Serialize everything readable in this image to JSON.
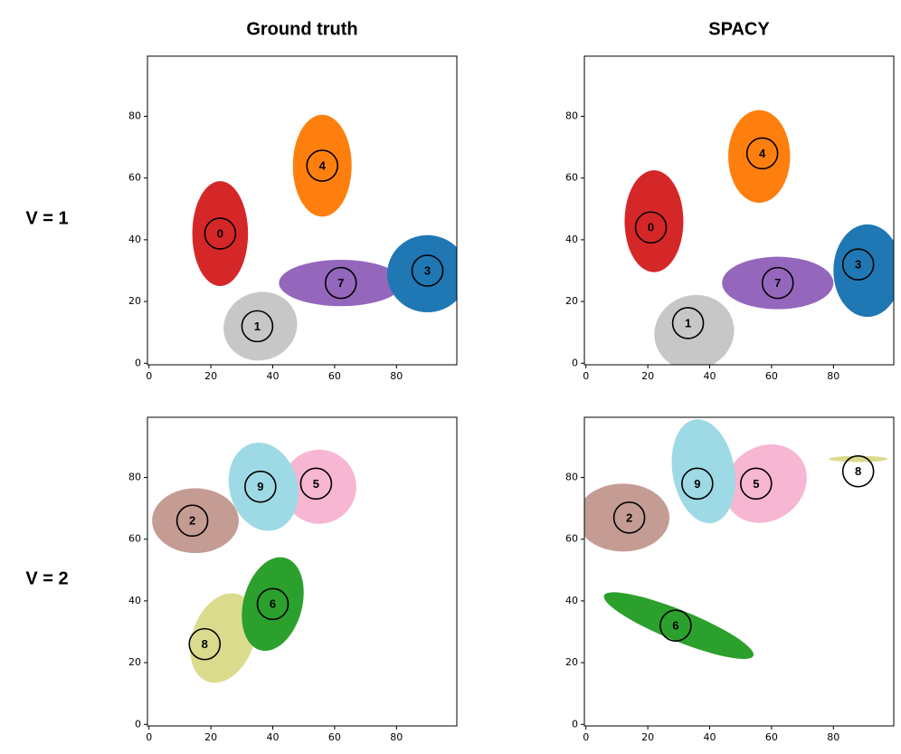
{
  "row_labels": [
    "V = 1",
    "V = 2"
  ],
  "chart_data": [
    {
      "type": "ellipse",
      "title": "Ground truth",
      "xlim": [
        -0.5,
        99.5
      ],
      "ylim": [
        99.5,
        -0.5
      ],
      "xticks": [
        0,
        20,
        40,
        60,
        80
      ],
      "yticks": [
        0,
        20,
        40,
        60,
        80
      ],
      "ellipses": [
        {
          "label": "1",
          "color": "#c7c7c7",
          "cx": 36,
          "cy": 12,
          "rx": 12,
          "ry": 11,
          "angle": -20,
          "lx": 35,
          "ly": 12
        },
        {
          "label": "0",
          "color": "#d62728",
          "cx": 23,
          "cy": 42,
          "rx": 9,
          "ry": 17,
          "angle": 0,
          "lx": 23,
          "ly": 42
        },
        {
          "label": "7",
          "color": "#9467bd",
          "cx": 62,
          "cy": 26,
          "rx": 20,
          "ry": 7.5,
          "angle": 0,
          "lx": 62,
          "ly": 26
        },
        {
          "label": "3",
          "color": "#1f77b4",
          "cx": 90,
          "cy": 29,
          "rx": 13,
          "ry": 12.5,
          "angle": 0,
          "lx": 90,
          "ly": 30
        },
        {
          "label": "4",
          "color": "#ff7f0e",
          "cx": 56,
          "cy": 64,
          "rx": 9.5,
          "ry": 16.5,
          "angle": 0,
          "lx": 56,
          "ly": 64
        }
      ]
    },
    {
      "type": "ellipse",
      "title": "SPACY",
      "xlim": [
        -0.5,
        99.5
      ],
      "ylim": [
        99.5,
        -0.5
      ],
      "xticks": [
        0,
        20,
        40,
        60,
        80
      ],
      "yticks": [
        0,
        20,
        40,
        60,
        80
      ],
      "ellipses": [
        {
          "label": "1",
          "color": "#c7c7c7",
          "cx": 35,
          "cy": 10,
          "rx": 13,
          "ry": 12,
          "angle": -20,
          "lx": 33,
          "ly": 13
        },
        {
          "label": "7",
          "color": "#9467bd",
          "cx": 62,
          "cy": 26,
          "rx": 18,
          "ry": 8.5,
          "angle": 0,
          "lx": 62,
          "ly": 26
        },
        {
          "label": "3",
          "color": "#1f77b4",
          "cx": 91,
          "cy": 30,
          "rx": 11,
          "ry": 15,
          "angle": 0,
          "lx": 88,
          "ly": 32
        },
        {
          "label": "0",
          "color": "#d62728",
          "cx": 22,
          "cy": 46,
          "rx": 9.5,
          "ry": 16.5,
          "angle": 0,
          "lx": 21,
          "ly": 44
        },
        {
          "label": "4",
          "color": "#ff7f0e",
          "cx": 56,
          "cy": 67,
          "rx": 10,
          "ry": 15,
          "angle": 0,
          "lx": 57,
          "ly": 68
        }
      ]
    },
    {
      "type": "ellipse",
      "xlim": [
        -0.5,
        99.5
      ],
      "ylim": [
        99.5,
        -0.5
      ],
      "xticks": [
        0,
        20,
        40,
        60,
        80
      ],
      "yticks": [
        0,
        20,
        40,
        60,
        80
      ],
      "ellipses": [
        {
          "label": "2",
          "color": "#c49c94",
          "cx": 15,
          "cy": 66,
          "rx": 14,
          "ry": 10.5,
          "angle": 0,
          "lx": 14,
          "ly": 66
        },
        {
          "label": "5",
          "color": "#f7b6d2",
          "cx": 55,
          "cy": 77,
          "rx": 12,
          "ry": 12,
          "angle": 0,
          "lx": 54,
          "ly": 78
        },
        {
          "label": "9",
          "color": "#9edae5",
          "cx": 37,
          "cy": 77,
          "rx": 11,
          "ry": 14.5,
          "angle": -15,
          "lx": 36,
          "ly": 77
        },
        {
          "label": "8",
          "color": "#dbdb8d",
          "cx": 24,
          "cy": 28,
          "rx": 10,
          "ry": 15,
          "angle": 20,
          "lx": 18,
          "ly": 26
        },
        {
          "label": "6",
          "color": "#2ca02c",
          "cx": 40,
          "cy": 39,
          "rx": 9.5,
          "ry": 15.5,
          "angle": 15,
          "lx": 40,
          "ly": 39
        }
      ]
    },
    {
      "type": "ellipse",
      "xlim": [
        -0.5,
        99.5
      ],
      "ylim": [
        99.5,
        -0.5
      ],
      "xticks": [
        0,
        20,
        40,
        60,
        80
      ],
      "yticks": [
        0,
        20,
        40,
        60,
        80
      ],
      "ellipses": [
        {
          "label": "6",
          "color": "#2ca02c",
          "cx": 30,
          "cy": 32,
          "rx": 26,
          "ry": 5,
          "angle": 22,
          "lx": 29,
          "ly": 32
        },
        {
          "label": "2",
          "color": "#c49c94",
          "cx": 12,
          "cy": 67,
          "rx": 15,
          "ry": 11,
          "angle": 0,
          "lx": 14,
          "ly": 67
        },
        {
          "label": "5",
          "color": "#f7b6d2",
          "cx": 58,
          "cy": 78,
          "rx": 14,
          "ry": 12,
          "angle": -35,
          "lx": 55,
          "ly": 78
        },
        {
          "label": "9",
          "color": "#9edae5",
          "cx": 38,
          "cy": 82,
          "rx": 10,
          "ry": 17,
          "angle": -10,
          "lx": 36,
          "ly": 78
        },
        {
          "label": "8",
          "color": "#dbdb8d",
          "cx": 88,
          "cy": 86,
          "rx": 9.5,
          "ry": 1,
          "angle": 0,
          "lx": 88,
          "ly": 82
        }
      ]
    }
  ]
}
